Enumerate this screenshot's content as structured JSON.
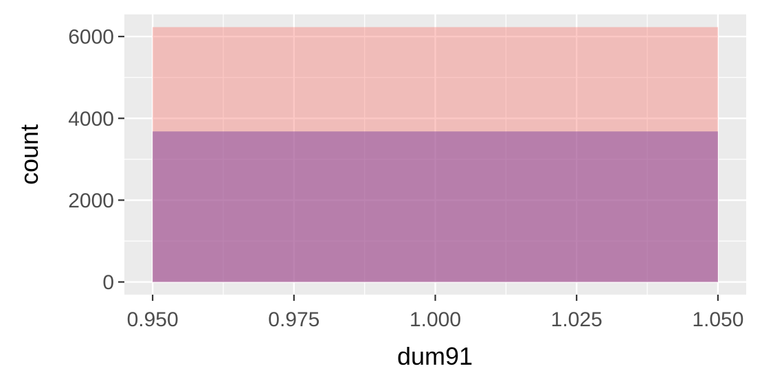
{
  "chart_data": {
    "type": "bar",
    "title": "",
    "xlabel": "dum91",
    "ylabel": "count",
    "x_ticks": [
      "0.950",
      "0.975",
      "1.000",
      "1.025",
      "1.050"
    ],
    "y_ticks": [
      "0",
      "2000",
      "4000",
      "6000"
    ],
    "xlim": [
      0.945,
      1.055
    ],
    "ylim": [
      -310,
      6540
    ],
    "grid": true,
    "legend": "none",
    "background": "#ebebeb",
    "series": [
      {
        "bin": [
          0.95,
          1.05
        ],
        "value": 6230,
        "color": "#f8766d",
        "opacity": 0.4
      },
      {
        "bin": [
          0.95,
          1.05
        ],
        "value": 3680,
        "color": "#7e3f9d",
        "opacity": 0.5
      }
    ]
  }
}
